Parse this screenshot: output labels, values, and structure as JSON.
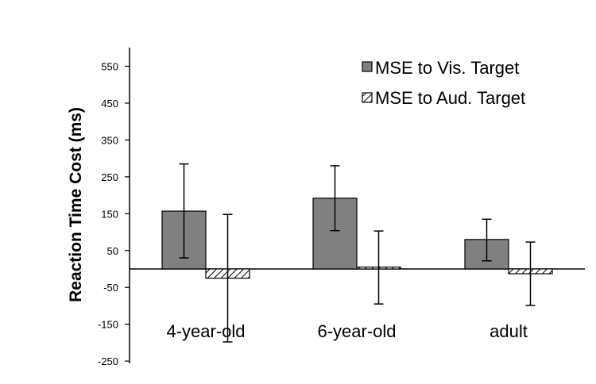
{
  "chart_data": {
    "type": "bar",
    "title": "",
    "xlabel": "",
    "ylabel": "Reaction Time Cost (ms)",
    "ylim": [
      -250,
      600
    ],
    "yticks": [
      550,
      450,
      350,
      250,
      150,
      50,
      -50,
      -150,
      -250
    ],
    "categories": [
      "4-year-old",
      "6-year-old",
      "adult"
    ],
    "series": [
      {
        "name": "MSE to Vis. Target",
        "pattern": "solid",
        "color": "#808080",
        "values": [
          157,
          192,
          80
        ],
        "error": [
          [
            30,
            285
          ],
          [
            104,
            280
          ],
          [
            22,
            135
          ]
        ]
      },
      {
        "name": "MSE to Aud. Target",
        "pattern": "hatched",
        "color": "#ffffff",
        "values": [
          -25,
          5,
          -13
        ],
        "error": [
          [
            -198,
            148
          ],
          [
            -95,
            103
          ],
          [
            -99,
            73
          ]
        ]
      }
    ],
    "legend": "top-right",
    "grid": false
  }
}
